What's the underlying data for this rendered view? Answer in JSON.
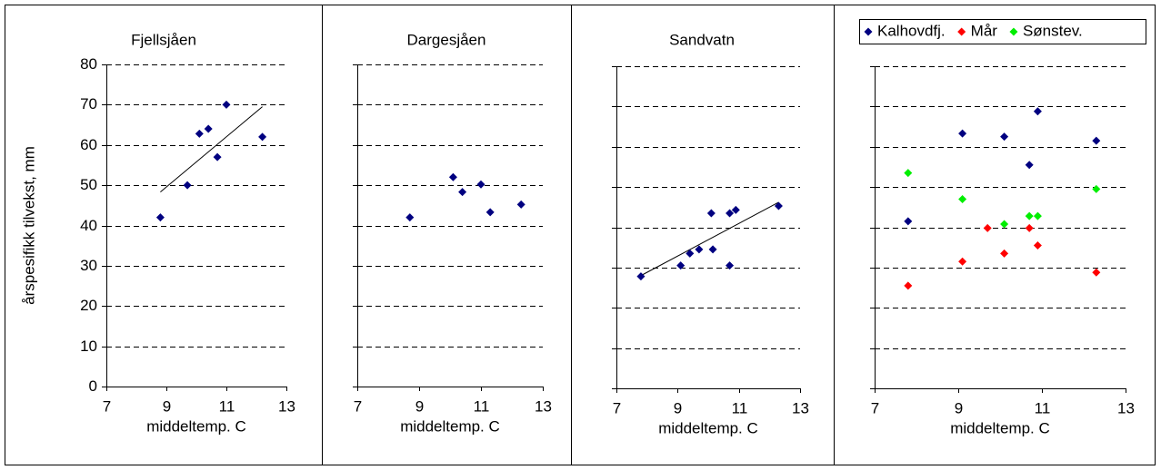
{
  "chart_data": [
    {
      "type": "scatter",
      "title": "Fjellsjåen",
      "xlabel": "middeltemp. C",
      "ylabel": "årspesifikk tilvekst, mm",
      "color": "#000080",
      "x": [
        8.8,
        9.7,
        10.1,
        10.4,
        10.7,
        11,
        12.2
      ],
      "values": [
        42,
        50,
        62.8,
        64,
        57,
        70,
        62
      ],
      "trendline": {
        "x": [
          8.8,
          12.2
        ],
        "values": [
          48.3,
          69.5
        ]
      },
      "xlim": [
        7,
        13
      ],
      "xticks": [
        7,
        9,
        11,
        13
      ],
      "ylim": [
        0,
        80
      ],
      "yticks": [
        0,
        10,
        20,
        30,
        40,
        50,
        60,
        70,
        80
      ],
      "ytick_labels": true,
      "grid": true
    },
    {
      "type": "scatter",
      "title": "Dargesjåen",
      "xlabel": "middeltemp. C",
      "color": "#000080",
      "x": [
        8.7,
        10.1,
        10.4,
        11,
        11.3,
        12.3
      ],
      "values": [
        42,
        52,
        48.3,
        50.2,
        43.3,
        45.2
      ],
      "xlim": [
        7,
        13
      ],
      "xticks": [
        7,
        9,
        11,
        13
      ],
      "ylim": [
        0,
        80
      ],
      "yticks": [
        0,
        10,
        20,
        30,
        40,
        50,
        60,
        70,
        80
      ],
      "ytick_labels": false,
      "grid": true
    },
    {
      "type": "scatter",
      "title": "Sandvatn",
      "xlabel": "middeltemp. C",
      "color": "#000080",
      "x": [
        7.8,
        9.1,
        9.4,
        9.7,
        10.1,
        10.15,
        10.7,
        10.7,
        10.9,
        12.3
      ],
      "values": [
        27.8,
        30.5,
        33.5,
        34.5,
        43.5,
        34.5,
        30.5,
        43.5,
        44.3,
        45.3
      ],
      "trendline": {
        "x": [
          7.8,
          12.3
        ],
        "values": [
          28,
          46.2
        ]
      },
      "xlim": [
        7,
        13
      ],
      "xticks": [
        7,
        9,
        11,
        13
      ],
      "ylim": [
        0,
        80
      ],
      "yticks": [
        0,
        10,
        20,
        30,
        40,
        50,
        60,
        70,
        80
      ],
      "ytick_labels": false,
      "grid": true
    },
    {
      "type": "scatter",
      "xlabel": "middeltemp. C",
      "series": [
        {
          "name": "Kalhovdfj.",
          "color": "#000080",
          "x": [
            7.8,
            9.1,
            10.1,
            10.7,
            10.9,
            12.3
          ],
          "values": [
            41.5,
            63.3,
            62.5,
            55.5,
            68.8,
            61.5
          ]
        },
        {
          "name": "Mår",
          "color": "#ff0000",
          "x": [
            7.8,
            9.1,
            9.7,
            10.1,
            10.7,
            10.9,
            12.3
          ],
          "values": [
            25.5,
            31.5,
            39.8,
            33.5,
            39.8,
            35.5,
            28.8
          ]
        },
        {
          "name": "Sønstev.",
          "color": "#00ee00",
          "x": [
            7.8,
            9.1,
            10.1,
            10.7,
            10.9,
            12.3
          ],
          "values": [
            53.5,
            47,
            40.8,
            42.8,
            42.8,
            49.5
          ]
        }
      ],
      "xlim": [
        7,
        13
      ],
      "xticks": [
        7,
        9,
        11,
        13
      ],
      "ylim": [
        0,
        80
      ],
      "yticks": [
        0,
        10,
        20,
        30,
        40,
        50,
        60,
        70,
        80
      ],
      "ytick_labels": false,
      "grid": true
    }
  ]
}
